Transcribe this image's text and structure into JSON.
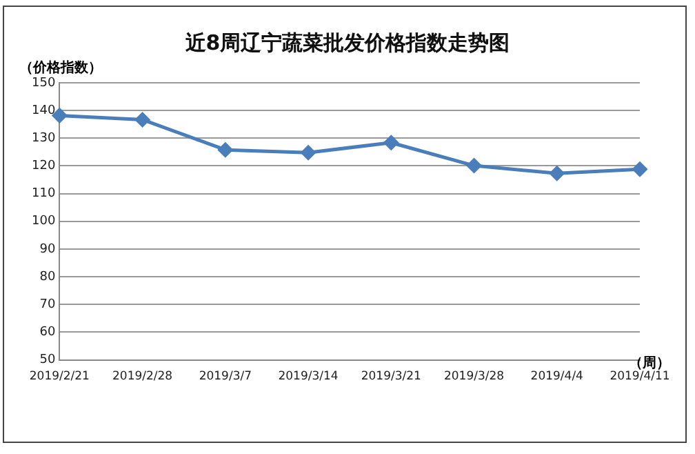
{
  "chart_data": {
    "type": "line",
    "title": "近8周辽宁蔬菜批发价格指数走势图",
    "ylabel": "（价格指数）",
    "xlabel": "（周）",
    "categories": [
      "2019/2/21",
      "2019/2/28",
      "2019/3/7",
      "2019/3/14",
      "2019/3/21",
      "2019/3/28",
      "2019/4/4",
      "2019/4/11"
    ],
    "series": [
      {
        "color": "#4a7ebb",
        "values": [
          138.2,
          136.7,
          125.8,
          124.8,
          128.4,
          120.1,
          117.3,
          118.8
        ]
      }
    ],
    "ylim": [
      50,
      150
    ],
    "yticks": [
      50,
      60,
      70,
      80,
      90,
      100,
      110,
      120,
      130,
      140,
      150
    ],
    "grid": "y",
    "legend": false,
    "marker": "diamond",
    "line_style": "solid"
  }
}
